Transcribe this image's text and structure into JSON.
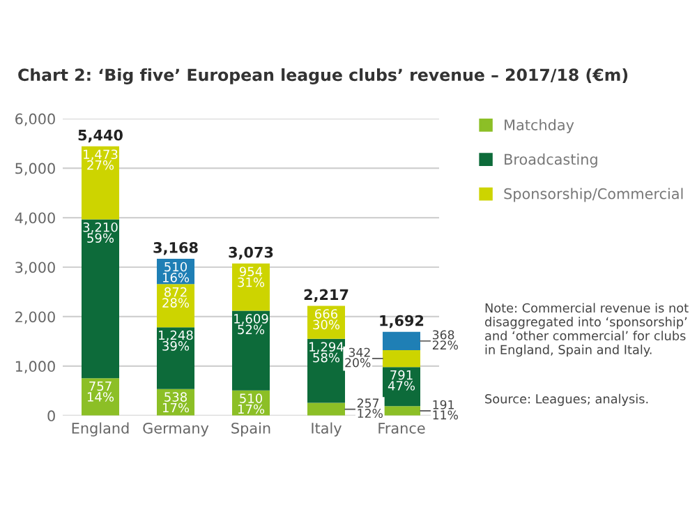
{
  "chart_data": {
    "type": "bar",
    "title": "Chart 2: ‘Big five’ European league clubs’ revenue – 2017/18 (€m)",
    "categories": [
      "England",
      "Germany",
      "Spain",
      "Italy",
      "France"
    ],
    "stacked": true,
    "series": [
      {
        "name": "Matchday",
        "color": "#8cbf26",
        "values": [
          757,
          538,
          510,
          257,
          191
        ],
        "value_labels": [
          "757\n14%",
          "538\n17%",
          "510\n17%",
          "257\n12%",
          "191\n11%"
        ]
      },
      {
        "name": "Broadcasting",
        "color": "#0d6b3a",
        "values": [
          3210,
          1248,
          1609,
          1294,
          791
        ],
        "value_labels": [
          "3,210\n59%",
          "1,248\n39%",
          "1,609\n52%",
          "1,294\n58%",
          "791\n47%"
        ]
      },
      {
        "name": "Sponsorship/Commercial",
        "color": "#cdd400",
        "values": [
          1473,
          872,
          954,
          666,
          342
        ],
        "value_labels": [
          "1,473\n27%",
          "872\n28%",
          "954\n31%",
          "666\n30%",
          "342\n20%"
        ]
      },
      {
        "color": "#1f7fb5",
        "values": [
          null,
          510,
          null,
          null,
          368
        ],
        "value_labels": [
          null,
          "510\n16%",
          null,
          null,
          "368\n22%"
        ]
      }
    ],
    "totals": [
      "5,440",
      "3,168",
      "3,073",
      "2,217",
      "1,692"
    ],
    "ylim": [
      0,
      6000
    ],
    "yticks": [
      {
        "value": 0,
        "label": "0"
      },
      {
        "value": 1000,
        "label": "1,000"
      },
      {
        "value": 2000,
        "label": "2,000"
      },
      {
        "value": 3000,
        "label": "3,000"
      },
      {
        "value": 4000,
        "label": "4,000"
      },
      {
        "value": 5000,
        "label": "5,000"
      },
      {
        "value": 6000,
        "label": "6,000"
      }
    ],
    "grid": "y",
    "legend": "top right",
    "annotations": [
      "Note: Commercial revenue is not disaggregated into ‘sponsorship’ and ‘other commercial’ for clubs in England, Spain and Italy.",
      "Source: Leagues; analysis."
    ]
  }
}
